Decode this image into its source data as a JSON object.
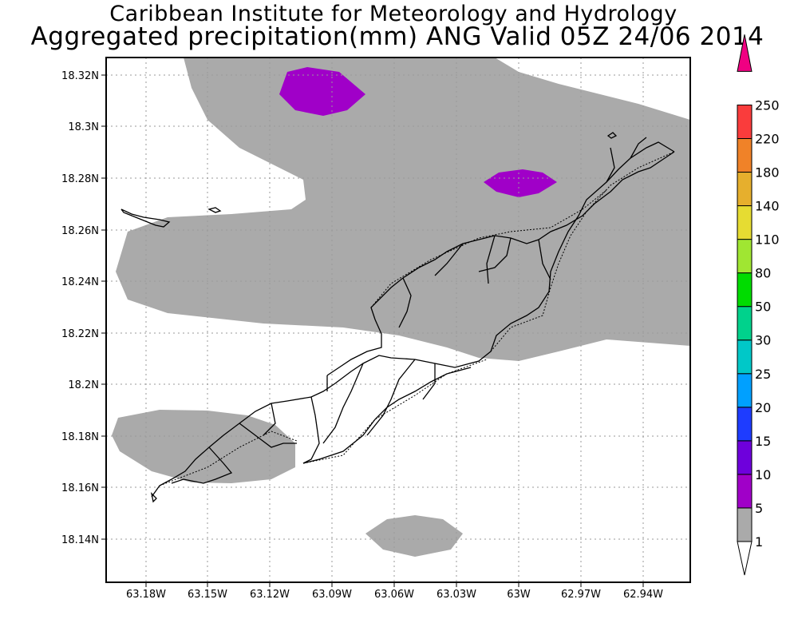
{
  "header": {
    "line1": "Caribbean Institute for Meteorology and Hydrology",
    "line2": "Aggregated precipitation(mm) ANG Valid 05Z 24/06 2014"
  },
  "map": {
    "region": "Anguilla",
    "lat_ticks": [
      "18.32N",
      "18.3N",
      "18.28N",
      "18.26N",
      "18.24N",
      "18.22N",
      "18.2N",
      "18.18N",
      "18.16N",
      "18.14N"
    ],
    "lon_ticks": [
      "63.18W",
      "63.15W",
      "63.12W",
      "63.09W",
      "63.06W",
      "63.03W",
      "63W",
      "62.97W",
      "62.94W"
    ],
    "grid": true,
    "precip_areas": [
      {
        "class": "1-5",
        "color": "#aaaaaa"
      },
      {
        "class": "5-10",
        "color": "#a000c8"
      }
    ]
  },
  "colorbar": {
    "levels": [
      "1",
      "5",
      "10",
      "15",
      "20",
      "25",
      "30",
      "50",
      "80",
      "110",
      "140",
      "180",
      "220",
      "250"
    ],
    "colors": [
      "#ffffff",
      "#aaaaaa",
      "#a000c8",
      "#6e00dc",
      "#1e3cff",
      "#00a0ff",
      "#00c8c8",
      "#00d28c",
      "#00dc00",
      "#a0e632",
      "#e6dc32",
      "#e6af2d",
      "#f08228",
      "#fa3c3c",
      "#f00082"
    ]
  }
}
